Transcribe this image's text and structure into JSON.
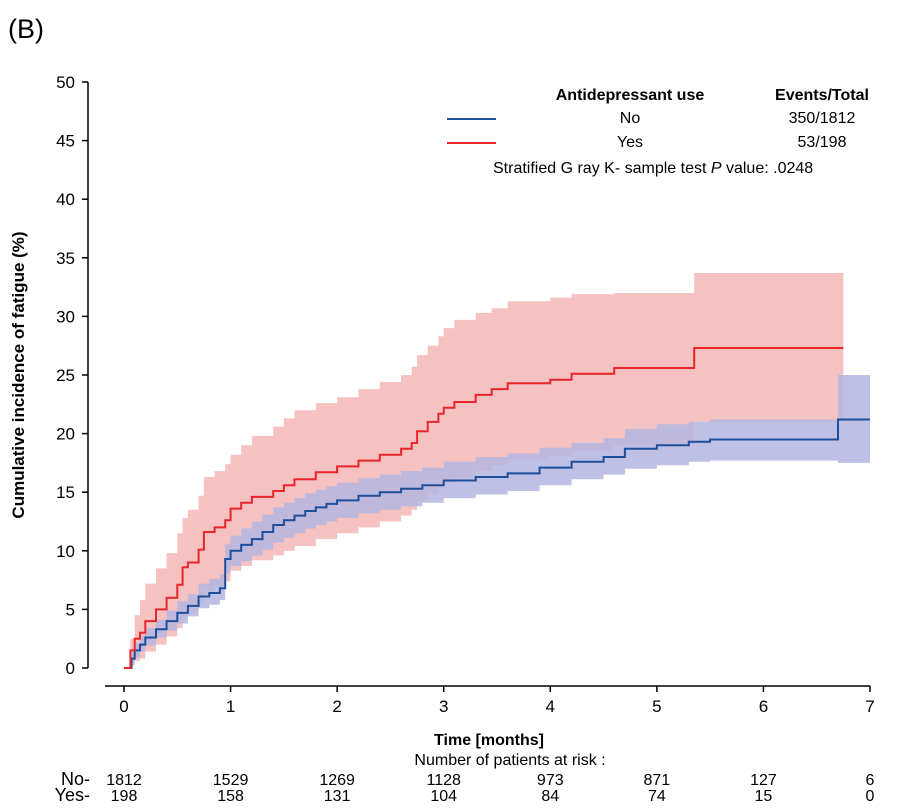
{
  "panel_label": "(B)",
  "chart_data": {
    "type": "line",
    "subtype": "cumulative-incidence-step",
    "xlabel": "Time [months]",
    "ylabel": "Cumulative incidence of fatigue (%)",
    "xlim": [
      0,
      7
    ],
    "ylim": [
      0,
      50
    ],
    "x_ticks": [
      0,
      1,
      2,
      3,
      4,
      5,
      6,
      7
    ],
    "y_ticks": [
      0,
      5,
      10,
      15,
      20,
      25,
      30,
      35,
      40,
      45,
      50
    ],
    "grid": false,
    "legend": {
      "placement": "top-right",
      "group_header": "Antidepressant use",
      "events_header": "Events/Total",
      "entries": [
        {
          "label": "No",
          "events": "350/1812"
        },
        {
          "label": "Yes",
          "events": "53/198"
        }
      ],
      "test_text_parts": [
        "Stratified G ray K- sample  test ",
        "P",
        "  value: .0248"
      ]
    },
    "colors": {
      "no_line": "#1f4e9a",
      "no_band": "#b3b6e0",
      "yes_line": "#e8262c",
      "yes_band": "#f3b2b2"
    },
    "series": [
      {
        "name": "No",
        "x": [
          0,
          0.07,
          0.1,
          0.15,
          0.2,
          0.3,
          0.4,
          0.5,
          0.6,
          0.7,
          0.8,
          0.9,
          0.95,
          1.0,
          1.1,
          1.2,
          1.3,
          1.4,
          1.5,
          1.6,
          1.7,
          1.8,
          1.9,
          2.0,
          2.2,
          2.4,
          2.6,
          2.8,
          3.0,
          3.3,
          3.6,
          3.9,
          4.2,
          4.5,
          4.7,
          5.0,
          5.3,
          5.5,
          6.0,
          6.7,
          7.0
        ],
        "y": [
          0,
          0.8,
          1.5,
          2.0,
          2.6,
          3.3,
          4.0,
          4.7,
          5.3,
          6.1,
          6.4,
          6.8,
          9.3,
          10.0,
          10.5,
          11.0,
          11.6,
          12.2,
          12.6,
          13.0,
          13.4,
          13.7,
          14.0,
          14.3,
          14.7,
          15.0,
          15.3,
          15.6,
          16.0,
          16.3,
          16.6,
          17.1,
          17.6,
          18.0,
          18.7,
          19.0,
          19.3,
          19.5,
          19.5,
          21.2,
          21.2
        ],
        "lower": [
          0,
          0.4,
          0.9,
          1.4,
          1.9,
          2.6,
          3.2,
          3.8,
          4.4,
          5.1,
          5.4,
          5.8,
          8.1,
          8.7,
          9.1,
          9.6,
          10.1,
          10.7,
          11.1,
          11.5,
          11.9,
          12.2,
          12.5,
          12.8,
          13.2,
          13.5,
          13.8,
          14.1,
          14.5,
          14.8,
          15.1,
          15.6,
          16.1,
          16.5,
          17.0,
          17.3,
          17.6,
          17.7,
          17.7,
          17.5,
          17.5
        ],
        "upper": [
          0,
          1.3,
          2.1,
          2.7,
          3.4,
          4.1,
          4.9,
          5.7,
          6.3,
          7.2,
          7.6,
          8.0,
          10.6,
          11.3,
          11.9,
          12.5,
          13.1,
          13.7,
          14.1,
          14.5,
          14.9,
          15.2,
          15.5,
          15.8,
          16.2,
          16.5,
          16.8,
          17.1,
          17.6,
          18.0,
          18.3,
          18.8,
          19.2,
          19.6,
          20.4,
          20.8,
          21.0,
          21.2,
          21.2,
          25.0,
          25.0
        ]
      },
      {
        "name": "Yes",
        "x": [
          0,
          0.06,
          0.1,
          0.15,
          0.2,
          0.3,
          0.4,
          0.5,
          0.55,
          0.6,
          0.7,
          0.75,
          0.85,
          0.95,
          1.0,
          1.1,
          1.2,
          1.4,
          1.5,
          1.6,
          1.8,
          2.0,
          2.2,
          2.4,
          2.6,
          2.7,
          2.75,
          2.85,
          2.95,
          3.0,
          3.1,
          3.3,
          3.45,
          3.6,
          4.0,
          4.2,
          4.6,
          5.0,
          5.35,
          6.0,
          6.75
        ],
        "y": [
          0,
          1.5,
          2.5,
          3.0,
          4.0,
          5.0,
          6.0,
          7.1,
          8.6,
          9.0,
          10.1,
          11.6,
          12.0,
          12.6,
          13.6,
          14.1,
          14.6,
          15.1,
          15.6,
          16.1,
          16.7,
          17.2,
          17.7,
          18.2,
          18.7,
          19.2,
          20.2,
          21.0,
          21.7,
          22.2,
          22.7,
          23.3,
          23.8,
          24.3,
          24.6,
          25.1,
          25.6,
          25.6,
          27.3,
          27.3,
          27.3
        ],
        "lower": [
          0,
          0.2,
          0.6,
          0.8,
          1.4,
          2.0,
          2.7,
          3.4,
          4.3,
          4.7,
          5.5,
          6.6,
          7.0,
          7.4,
          8.3,
          8.7,
          9.2,
          9.6,
          10.0,
          10.4,
          11.0,
          11.5,
          12.0,
          12.5,
          13.0,
          13.5,
          14.3,
          14.9,
          15.4,
          15.8,
          16.2,
          16.8,
          17.3,
          17.8,
          18.1,
          18.5,
          19.0,
          19.0,
          21.0,
          21.0,
          21.0
        ],
        "upper": [
          0,
          2.5,
          4.5,
          5.8,
          7.2,
          8.5,
          9.8,
          11.5,
          12.8,
          13.5,
          14.7,
          16.3,
          16.8,
          17.4,
          18.2,
          19.0,
          19.8,
          20.6,
          21.3,
          22.0,
          22.6,
          23.1,
          23.8,
          24.4,
          25.0,
          25.7,
          26.7,
          27.5,
          28.3,
          29.0,
          29.7,
          30.3,
          30.7,
          31.3,
          31.6,
          31.9,
          32.0,
          32.0,
          33.7,
          33.7,
          33.7
        ]
      }
    ],
    "risk_table": {
      "title": "Number of  patients at risk :",
      "rows": [
        {
          "label": "No-",
          "values": [
            "1812",
            "1529",
            "1269",
            "1128",
            "973",
            "871",
            "127",
            "6"
          ]
        },
        {
          "label": "Yes-",
          "values": [
            "198",
            "158",
            "131",
            "104",
            "84",
            "74",
            "15",
            "0"
          ]
        }
      ]
    }
  }
}
